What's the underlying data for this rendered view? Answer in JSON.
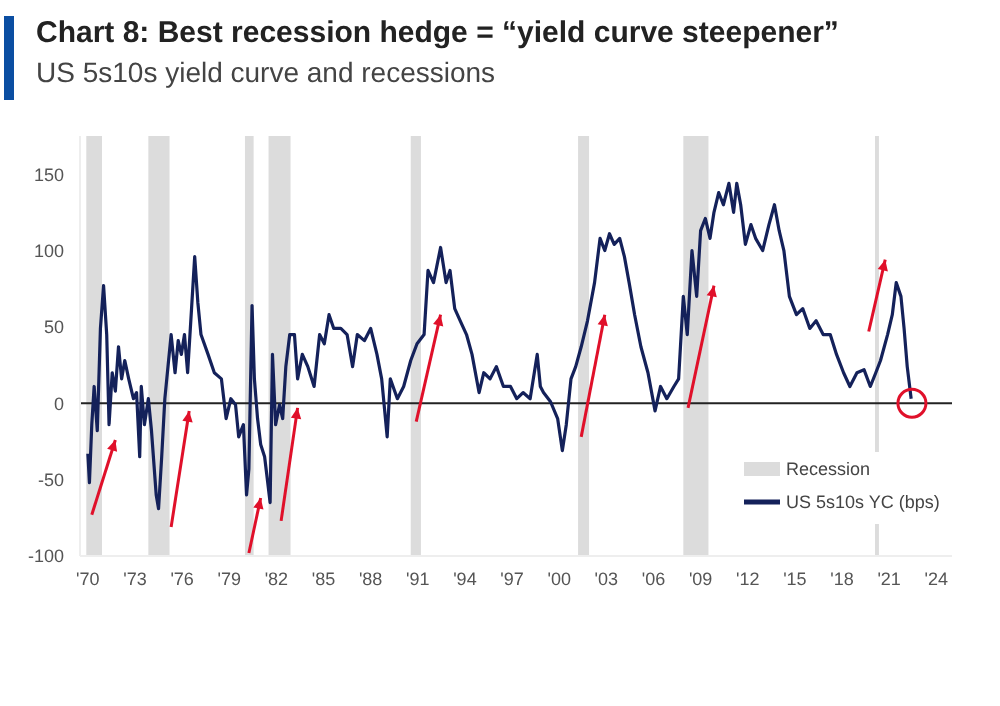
{
  "chart_data": {
    "type": "line",
    "title": "Chart 8: Best recession hedge = “yield curve steepener”",
    "subtitle": "US 5s10s yield curve and recessions",
    "x": [
      1970.0,
      1970.1,
      1970.25,
      1970.4,
      1970.6,
      1970.8,
      1971.0,
      1971.2,
      1971.35,
      1971.55,
      1971.75,
      1971.95,
      1972.15,
      1972.35,
      1972.6,
      1972.9,
      1973.1,
      1973.3,
      1973.4,
      1973.6,
      1973.85,
      1974.05,
      1974.35,
      1974.5,
      1974.7,
      1974.9,
      1975.1,
      1975.3,
      1975.55,
      1975.75,
      1975.95,
      1976.15,
      1976.35,
      1976.6,
      1976.8,
      1977.0,
      1977.2,
      1977.65,
      1978.05,
      1978.5,
      1978.8,
      1979.1,
      1979.4,
      1979.6,
      1979.9,
      1980.1,
      1980.25,
      1980.45,
      1980.6,
      1980.8,
      1981.0,
      1981.25,
      1981.45,
      1981.6,
      1981.75,
      1981.95,
      1982.2,
      1982.4,
      1982.6,
      1982.85,
      1983.15,
      1983.35,
      1983.65,
      1984.0,
      1984.4,
      1984.75,
      1985.05,
      1985.35,
      1985.65,
      1986.1,
      1986.5,
      1986.85,
      1987.15,
      1987.6,
      1988.0,
      1988.4,
      1988.7,
      1989.05,
      1989.25,
      1989.7,
      1990.1,
      1990.55,
      1990.95,
      1991.4,
      1991.65,
      1992.0,
      1992.45,
      1992.8,
      1993.05,
      1993.35,
      1993.7,
      1994.1,
      1994.45,
      1994.9,
      1995.2,
      1995.6,
      1996.0,
      1996.45,
      1996.9,
      1997.3,
      1997.7,
      1998.15,
      1998.6,
      1998.8,
      1999.0,
      1999.45,
      1999.9,
      2000.2,
      2000.45,
      2000.75,
      2001.05,
      2001.4,
      2001.8,
      2002.25,
      2002.6,
      2002.9,
      2003.2,
      2003.5,
      2003.85,
      2004.15,
      2004.45,
      2004.8,
      2005.2,
      2005.65,
      2006.1,
      2006.45,
      2006.85,
      2007.3,
      2007.6,
      2007.9,
      2008.15,
      2008.45,
      2008.75,
      2009.0,
      2009.3,
      2009.6,
      2009.85,
      2010.15,
      2010.45,
      2010.8,
      2011.1,
      2011.3,
      2011.55,
      2011.85,
      2012.2,
      2012.5,
      2012.95,
      2013.35,
      2013.7,
      2014.0,
      2014.3,
      2014.65,
      2015.1,
      2015.5,
      2015.95,
      2016.35,
      2016.8,
      2017.25,
      2017.65,
      2018.1,
      2018.5,
      2018.95,
      2019.4,
      2019.8,
      2020.15,
      2020.45,
      2020.9,
      2021.2,
      2021.45,
      2021.75,
      2021.95,
      2022.15,
      2022.4
    ],
    "series": [
      {
        "name": "US 5s10s YC (bps)",
        "color": "#14215a",
        "values": [
          -33,
          -52,
          -14,
          11,
          -18,
          49,
          77,
          45,
          -14,
          20,
          8,
          37,
          16,
          28,
          16,
          3,
          7,
          -35,
          11,
          -14,
          3,
          -18,
          -60,
          -69,
          -35,
          3,
          24,
          45,
          20,
          41,
          32,
          45,
          20,
          62,
          96,
          66,
          45,
          32,
          20,
          16,
          -10,
          3,
          -1,
          -22,
          -14,
          -60,
          -43,
          64,
          16,
          -10,
          -27,
          -35,
          -52,
          -65,
          32,
          -14,
          -1,
          -10,
          24,
          45,
          45,
          16,
          32,
          24,
          11,
          45,
          39,
          58,
          49,
          49,
          45,
          24,
          45,
          41,
          49,
          32,
          16,
          -22,
          16,
          3,
          11,
          28,
          39,
          45,
          87,
          79,
          102,
          79,
          87,
          62,
          54,
          45,
          32,
          7,
          20,
          16,
          24,
          11,
          11,
          3,
          7,
          3,
          32,
          11,
          7,
          1,
          -10,
          -31,
          -14,
          16,
          24,
          37,
          54,
          79,
          108,
          100,
          111,
          104,
          108,
          96,
          79,
          58,
          37,
          20,
          -5,
          11,
          3,
          11,
          16,
          70,
          45,
          100,
          70,
          113,
          121,
          108,
          125,
          138,
          130,
          144,
          125,
          144,
          130,
          104,
          117,
          108,
          100,
          117,
          130,
          113,
          100,
          70,
          58,
          62,
          49,
          54,
          45,
          45,
          32,
          20,
          11,
          20,
          22,
          11,
          20,
          28,
          45,
          58,
          79,
          70,
          49,
          24,
          3
        ]
      }
    ],
    "xlim": [
      1969.5,
      2025
    ],
    "ylim": [
      -100,
      175
    ],
    "xticks": [
      {
        "value": 1970,
        "label": "'70"
      },
      {
        "value": 1973,
        "label": "'73"
      },
      {
        "value": 1976,
        "label": "'76"
      },
      {
        "value": 1979,
        "label": "'79"
      },
      {
        "value": 1982,
        "label": "'82"
      },
      {
        "value": 1985,
        "label": "'85"
      },
      {
        "value": 1988,
        "label": "'88"
      },
      {
        "value": 1991,
        "label": "'91"
      },
      {
        "value": 1994,
        "label": "'94"
      },
      {
        "value": 1997,
        "label": "'97"
      },
      {
        "value": 2000,
        "label": "'00"
      },
      {
        "value": 2003,
        "label": "'03"
      },
      {
        "value": 2006,
        "label": "'06"
      },
      {
        "value": 2009,
        "label": "'09"
      },
      {
        "value": 2012,
        "label": "'12"
      },
      {
        "value": 2015,
        "label": "'15"
      },
      {
        "value": 2018,
        "label": "'18"
      },
      {
        "value": 2021,
        "label": "'21"
      },
      {
        "value": 2024,
        "label": "'24"
      }
    ],
    "yticks": [
      -100,
      -50,
      0,
      50,
      100,
      150
    ],
    "annotations": [
      "Recession"
    ],
    "bands": [
      {
        "axis": "x",
        "from": 1969.9,
        "to": 1970.9,
        "color": "#dcdcdc"
      },
      {
        "axis": "x",
        "from": 1973.85,
        "to": 1975.2,
        "color": "#dcdcdc"
      },
      {
        "axis": "x",
        "from": 1980.0,
        "to": 1980.55,
        "color": "#dcdcdc"
      },
      {
        "axis": "x",
        "from": 1981.5,
        "to": 1982.9,
        "color": "#dcdcdc"
      },
      {
        "axis": "x",
        "from": 1990.55,
        "to": 1991.2,
        "color": "#dcdcdc"
      },
      {
        "axis": "x",
        "from": 2001.2,
        "to": 2001.9,
        "color": "#dcdcdc"
      },
      {
        "axis": "x",
        "from": 2007.9,
        "to": 2009.5,
        "color": "#dcdcdc"
      },
      {
        "axis": "x",
        "from": 2020.1,
        "to": 2020.35,
        "color": "#dcdcdc"
      }
    ],
    "ref_lines": [
      {
        "axis": "y",
        "value": 0,
        "color": "#222222"
      }
    ],
    "grid": false,
    "legend": "bottom right",
    "marker": "none",
    "line_style": "solid"
  }
}
